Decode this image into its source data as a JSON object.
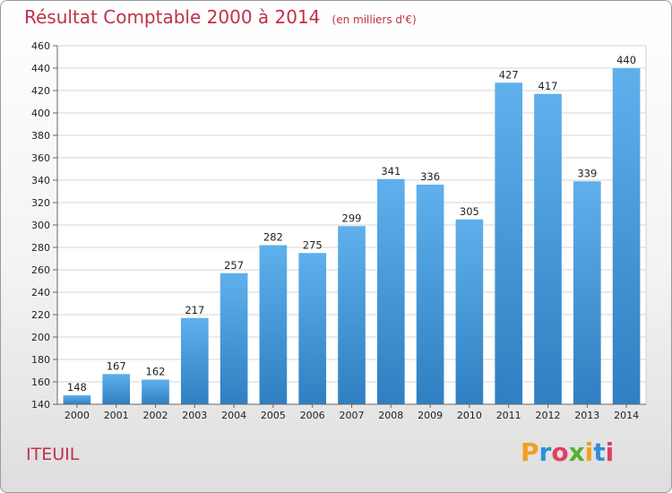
{
  "chart_data": {
    "type": "bar",
    "title": "Résultat Comptable 2000 à 2014",
    "subtitle": "(en milliers d'€)",
    "categories": [
      "2000",
      "2001",
      "2002",
      "2003",
      "2004",
      "2005",
      "2006",
      "2007",
      "2008",
      "2009",
      "2010",
      "2011",
      "2012",
      "2013",
      "2014"
    ],
    "values": [
      148,
      167,
      162,
      217,
      257,
      282,
      275,
      299,
      341,
      336,
      305,
      427,
      417,
      339,
      440
    ],
    "ylim": [
      140,
      460
    ],
    "yticks": [
      140,
      160,
      180,
      200,
      220,
      240,
      260,
      280,
      300,
      320,
      340,
      360,
      380,
      400,
      420,
      440,
      460
    ],
    "grid": true,
    "bar_color": "#3f97d8"
  },
  "place_name": "ITEUIL",
  "logo": {
    "letters": [
      "P",
      "r",
      "o",
      "x",
      "i",
      "t",
      "i"
    ],
    "colors": [
      "#f0a020",
      "#2f8fd8",
      "#e04060",
      "#57b030",
      "#f0a020",
      "#2f8fd8",
      "#e04060"
    ]
  }
}
